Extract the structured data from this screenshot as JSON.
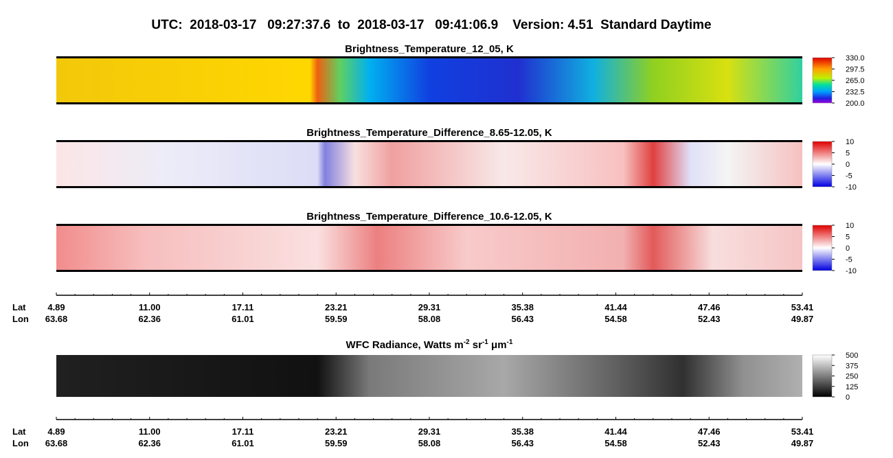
{
  "header": {
    "title": "UTC:  2018-03-17   09:27:37.6  to  2018-03-17   09:41:06.9    Version: 4.51  Standard Daytime"
  },
  "panels": [
    {
      "title": "Brightness_Temperature_12_05, K",
      "colorbar": [
        "330.0",
        "297.5",
        "265.0",
        "232.5",
        "200.0"
      ]
    },
    {
      "title": "Brightness_Temperature_Difference_8.65-12.05, K",
      "colorbar": [
        "10",
        "5",
        "0",
        "-5",
        "-10"
      ]
    },
    {
      "title": "Brightness_Temperature_Difference_10.6-12.05, K",
      "colorbar": [
        "10",
        "5",
        "0",
        "-5",
        "-10"
      ]
    },
    {
      "title_parts": [
        "WFC Radiance, Watts m",
        "-2",
        " sr",
        "-1",
        " μm",
        "-1"
      ],
      "colorbar": [
        "500",
        "375",
        "250",
        "125",
        "0"
      ]
    }
  ],
  "axes": [
    {
      "row_labels": [
        "Lat",
        "Lon"
      ],
      "lat": [
        "4.89",
        "11.00",
        "17.11",
        "23.21",
        "29.31",
        "35.38",
        "41.44",
        "47.46",
        "53.41"
      ],
      "lon": [
        "63.68",
        "62.36",
        "61.01",
        "59.59",
        "58.08",
        "56.43",
        "54.58",
        "52.43",
        "49.87"
      ]
    },
    {
      "row_labels": [
        "Lat",
        "Lon"
      ],
      "lat": [
        "4.89",
        "11.00",
        "17.11",
        "23.21",
        "29.31",
        "35.38",
        "41.44",
        "47.46",
        "53.41"
      ],
      "lon": [
        "63.68",
        "62.36",
        "61.01",
        "59.59",
        "58.08",
        "56.43",
        "54.58",
        "52.43",
        "49.87"
      ]
    }
  ]
}
